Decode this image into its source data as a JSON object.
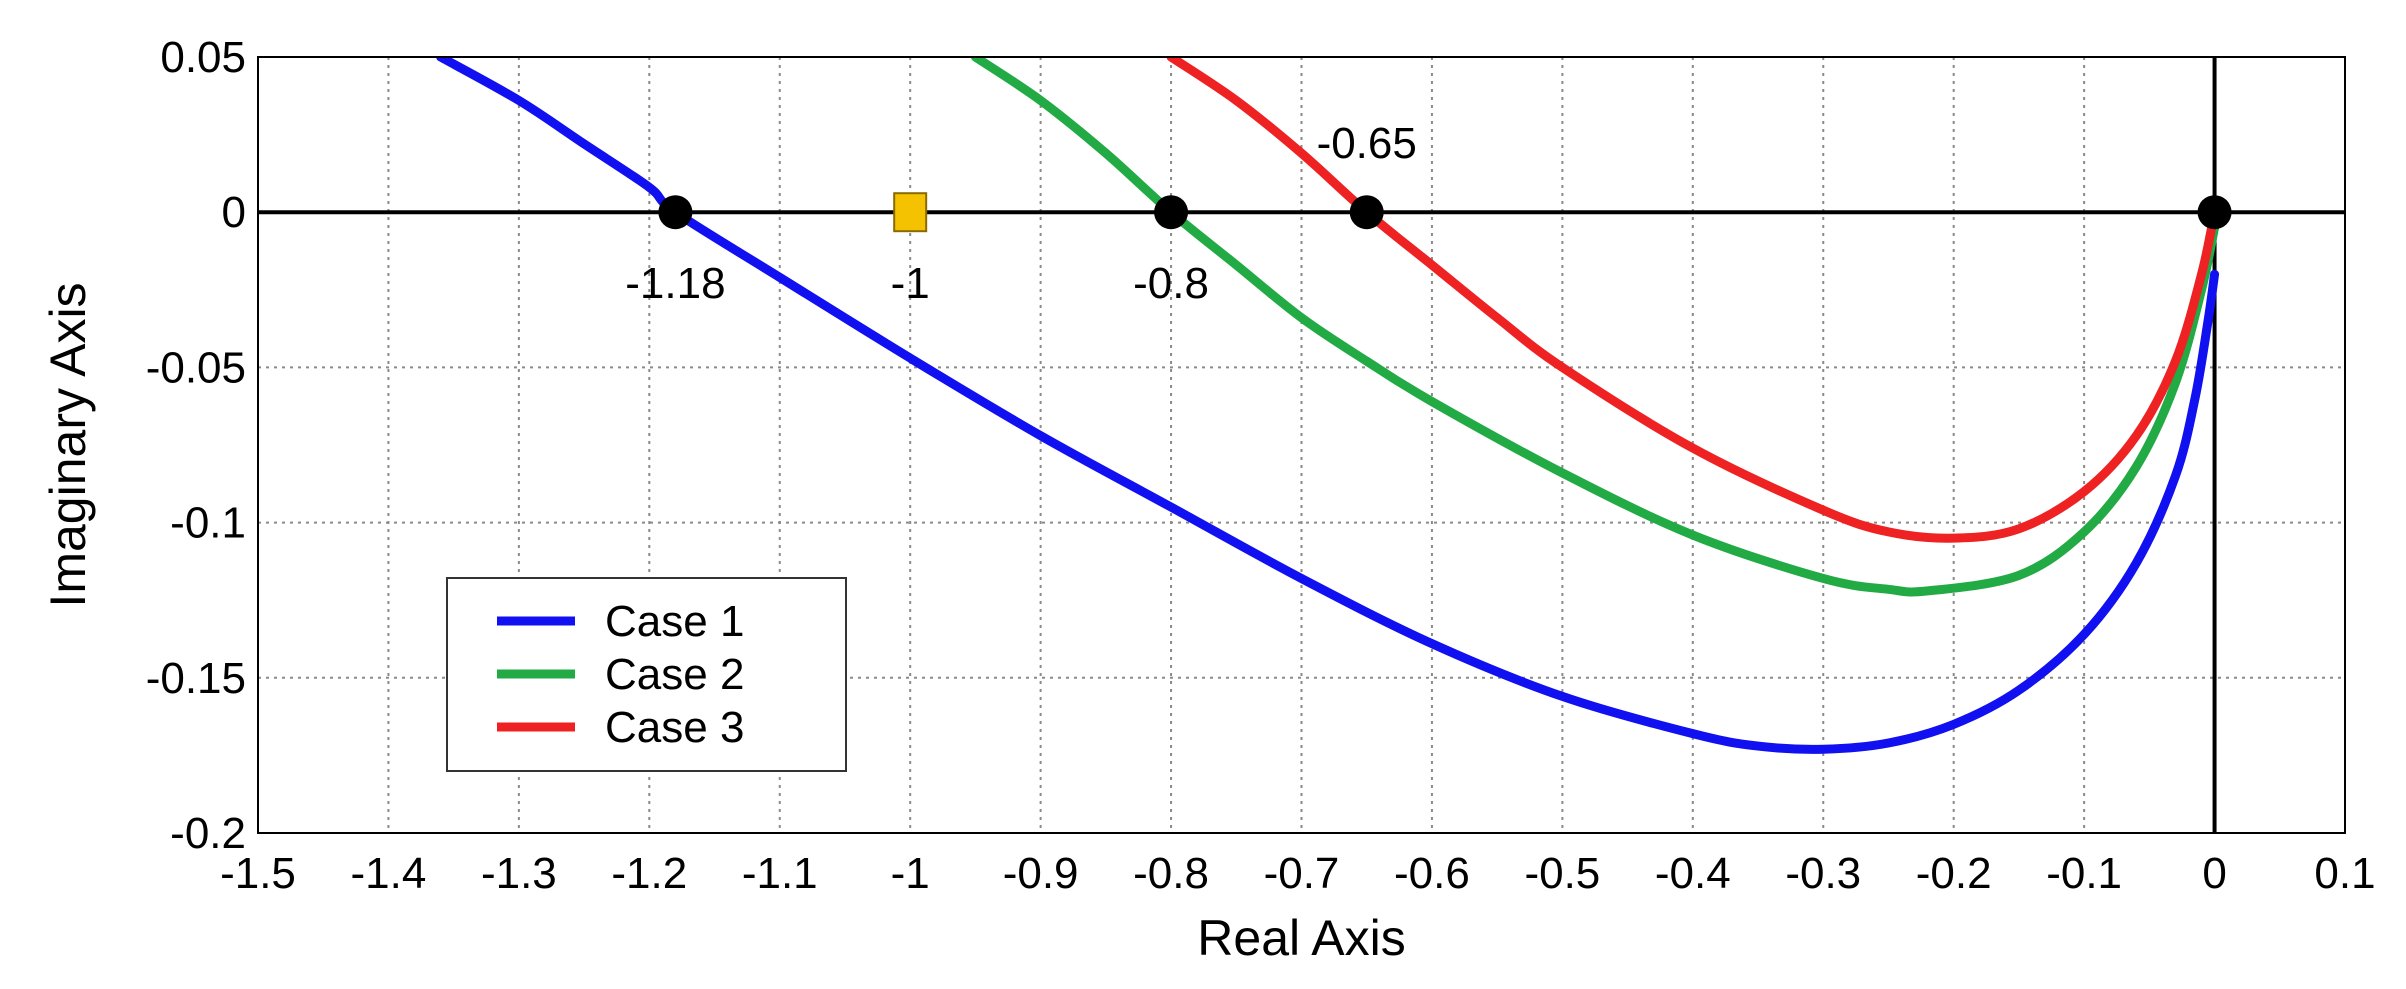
{
  "chart_data": {
    "type": "line",
    "title": "",
    "xlabel": "Real Axis",
    "ylabel": "Imaginary Axis",
    "xlim": [
      -1.5,
      0.1
    ],
    "ylim": [
      -0.2,
      0.05
    ],
    "grid": true,
    "legend_position": "bottom-left",
    "x_ticks": [
      -1.5,
      -1.4,
      -1.3,
      -1.2,
      -1.1,
      -1,
      -0.9,
      -0.8,
      -0.7,
      -0.6,
      -0.5,
      -0.4,
      -0.3,
      -0.2,
      -0.1,
      0,
      0.1
    ],
    "x_tick_labels": [
      "-1.5",
      "-1.4",
      "-1.3",
      "-1.2",
      "-1.1",
      "-1",
      "-0.9",
      "-0.8",
      "-0.7",
      "-0.6",
      "-0.5",
      "-0.4",
      "-0.3",
      "-0.2",
      "-0.1",
      "0",
      "0.1"
    ],
    "y_ticks": [
      0.05,
      0,
      -0.05,
      -0.1,
      -0.15,
      -0.2
    ],
    "y_tick_labels": [
      "0.05",
      "0",
      "-0.05",
      "-0.1",
      "-0.15",
      "-0.2"
    ],
    "series": [
      {
        "name": "Case 1",
        "color": "#1010f0",
        "points": [
          [
            -1.36,
            0.05
          ],
          [
            -1.3,
            0.036
          ],
          [
            -1.25,
            0.022
          ],
          [
            -1.2,
            0.008
          ],
          [
            -1.18,
            0.0
          ],
          [
            -1.1,
            -0.021
          ],
          [
            -1.0,
            -0.047
          ],
          [
            -0.9,
            -0.072
          ],
          [
            -0.8,
            -0.095
          ],
          [
            -0.7,
            -0.118
          ],
          [
            -0.6,
            -0.139
          ],
          [
            -0.5,
            -0.156
          ],
          [
            -0.4,
            -0.168
          ],
          [
            -0.35,
            -0.172
          ],
          [
            -0.3,
            -0.173
          ],
          [
            -0.25,
            -0.171
          ],
          [
            -0.2,
            -0.165
          ],
          [
            -0.15,
            -0.154
          ],
          [
            -0.1,
            -0.136
          ],
          [
            -0.06,
            -0.113
          ],
          [
            -0.03,
            -0.085
          ],
          [
            -0.015,
            -0.06
          ],
          [
            -0.005,
            -0.035
          ],
          [
            0.0,
            -0.02
          ]
        ]
      },
      {
        "name": "Case 2",
        "color": "#22aa44",
        "points": [
          [
            -0.95,
            0.05
          ],
          [
            -0.9,
            0.036
          ],
          [
            -0.85,
            0.019
          ],
          [
            -0.8,
            0.0
          ],
          [
            -0.75,
            -0.017
          ],
          [
            -0.7,
            -0.034
          ],
          [
            -0.65,
            -0.048
          ],
          [
            -0.6,
            -0.061
          ],
          [
            -0.5,
            -0.084
          ],
          [
            -0.4,
            -0.104
          ],
          [
            -0.3,
            -0.118
          ],
          [
            -0.25,
            -0.1215
          ],
          [
            -0.22,
            -0.122
          ],
          [
            -0.15,
            -0.117
          ],
          [
            -0.1,
            -0.103
          ],
          [
            -0.06,
            -0.082
          ],
          [
            -0.03,
            -0.055
          ],
          [
            -0.01,
            -0.025
          ],
          [
            0.0,
            -0.005
          ]
        ]
      },
      {
        "name": "Case 3",
        "color": "#ee2222",
        "points": [
          [
            -0.8,
            0.05
          ],
          [
            -0.75,
            0.036
          ],
          [
            -0.7,
            0.019
          ],
          [
            -0.65,
            0.0
          ],
          [
            -0.6,
            -0.017
          ],
          [
            -0.55,
            -0.034
          ],
          [
            -0.5,
            -0.05
          ],
          [
            -0.4,
            -0.076
          ],
          [
            -0.3,
            -0.096
          ],
          [
            -0.25,
            -0.103
          ],
          [
            -0.2,
            -0.105
          ],
          [
            -0.15,
            -0.102
          ],
          [
            -0.1,
            -0.09
          ],
          [
            -0.06,
            -0.072
          ],
          [
            -0.03,
            -0.048
          ],
          [
            -0.01,
            -0.02
          ],
          [
            0.0,
            0.0
          ]
        ]
      }
    ],
    "markers": [
      {
        "x": -1.18,
        "y": 0,
        "shape": "circle",
        "color": "#000000",
        "label": "-1.18",
        "label_position": "below"
      },
      {
        "x": -1,
        "y": 0,
        "shape": "square",
        "color": "#f5c200",
        "label": "-1",
        "label_position": "below"
      },
      {
        "x": -0.8,
        "y": 0,
        "shape": "circle",
        "color": "#000000",
        "label": "-0.8",
        "label_position": "below"
      },
      {
        "x": -0.65,
        "y": 0,
        "shape": "circle",
        "color": "#000000",
        "label": "-0.65",
        "label_position": "above"
      },
      {
        "x": 0,
        "y": 0,
        "shape": "circle",
        "color": "#000000",
        "label": "",
        "label_position": "none"
      }
    ]
  }
}
